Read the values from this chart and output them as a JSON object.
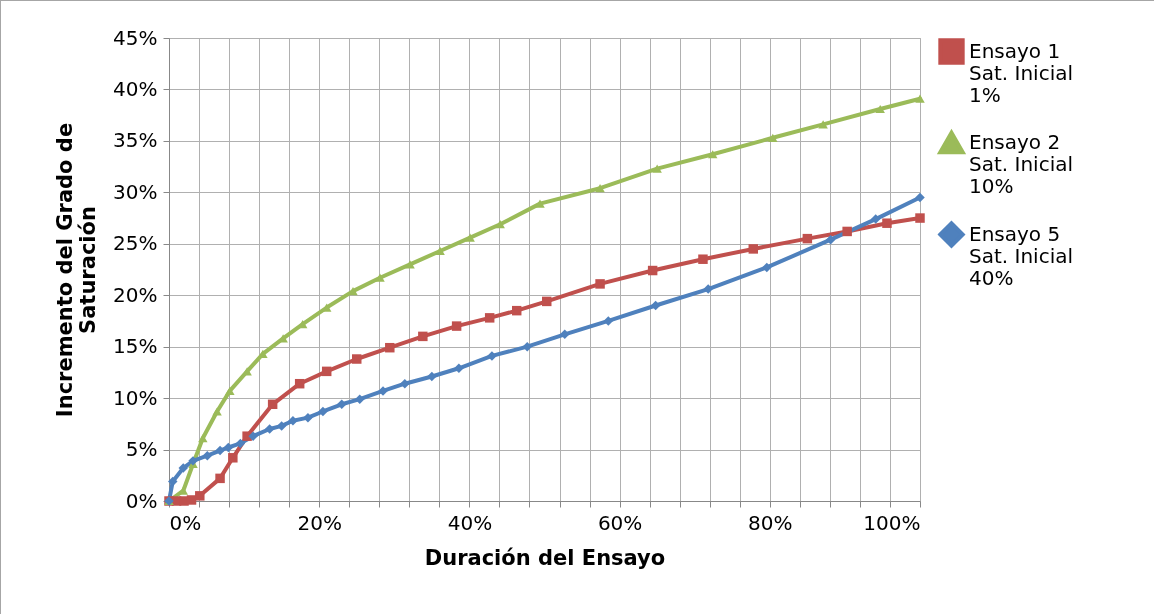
{
  "chart_data": {
    "type": "line",
    "xlabel": "Duración del Ensayo",
    "ylabel": "Incremento del Grado de Saturación",
    "legend": "right",
    "grid": true,
    "xlim": [
      0,
      100
    ],
    "xticks": [
      {
        "value": 0,
        "label": "0%"
      },
      {
        "value": 4,
        "label": null
      },
      {
        "value": 8,
        "label": null
      },
      {
        "value": 12,
        "label": null
      },
      {
        "value": 16,
        "label": null
      },
      {
        "value": 20,
        "label": "20%"
      },
      {
        "value": 24,
        "label": null
      },
      {
        "value": 28,
        "label": null
      },
      {
        "value": 32,
        "label": null
      },
      {
        "value": 36,
        "label": null
      },
      {
        "value": 40,
        "label": "40%"
      },
      {
        "value": 44,
        "label": null
      },
      {
        "value": 48,
        "label": null
      },
      {
        "value": 52,
        "label": null
      },
      {
        "value": 56,
        "label": null
      },
      {
        "value": 60,
        "label": "60%"
      },
      {
        "value": 64,
        "label": null
      },
      {
        "value": 68,
        "label": null
      },
      {
        "value": 72,
        "label": null
      },
      {
        "value": 76,
        "label": null
      },
      {
        "value": 80,
        "label": "80%"
      },
      {
        "value": 84,
        "label": null
      },
      {
        "value": 88,
        "label": null
      },
      {
        "value": 92,
        "label": null
      },
      {
        "value": 96,
        "label": null
      },
      {
        "value": 100,
        "label": "100%"
      }
    ],
    "ylim": [
      0,
      45
    ],
    "yticks": [
      {
        "value": 0,
        "label": "0%"
      },
      {
        "value": 5,
        "label": "5%"
      },
      {
        "value": 10,
        "label": "10%"
      },
      {
        "value": 15,
        "label": "15%"
      },
      {
        "value": 20,
        "label": "20%"
      },
      {
        "value": 25,
        "label": "25%"
      },
      {
        "value": 30,
        "label": "30%"
      },
      {
        "value": 35,
        "label": "35%"
      },
      {
        "value": 40,
        "label": "40%"
      },
      {
        "value": 45,
        "label": "45%"
      }
    ],
    "series": [
      {
        "name": "Ensayo 1 Sat. Inicial 1%",
        "color": "#c0504d",
        "marker": "square",
        "x": [
          0,
          1,
          2,
          3,
          4.1,
          6.8,
          8.5,
          10.4,
          13.8,
          17.4,
          21,
          25,
          29.4,
          33.8,
          38.3,
          42.7,
          46.3,
          50.3,
          57.4,
          64.4,
          71.1,
          77.8,
          85,
          90.3,
          95.6,
          100
        ],
        "values": [
          0,
          0,
          0,
          0.1,
          0.5,
          2.2,
          4.2,
          6.3,
          9.4,
          11.4,
          12.6,
          13.8,
          14.9,
          16,
          17,
          17.8,
          18.5,
          19.4,
          21.1,
          22.4,
          23.5,
          24.5,
          25.5,
          26.2,
          27,
          27.5
        ]
      },
      {
        "name": "Ensayo 2 Sat. Inicial 10%",
        "color": "#9bbb59",
        "marker": "triangle",
        "x": [
          0,
          1.9,
          3.2,
          4.5,
          6.4,
          8.1,
          10.4,
          12.5,
          15.2,
          17.8,
          21,
          24.5,
          28.1,
          32.1,
          36.1,
          40.1,
          44.1,
          49.4,
          57.4,
          65,
          72.4,
          80.4,
          87.1,
          94.7,
          100
        ],
        "values": [
          0,
          1,
          3.6,
          6.1,
          8.7,
          10.7,
          12.6,
          14.3,
          15.8,
          17.2,
          18.8,
          20.4,
          21.7,
          23,
          24.3,
          25.6,
          26.9,
          28.9,
          30.4,
          32.3,
          33.7,
          35.3,
          36.6,
          38.1,
          39.1
        ]
      },
      {
        "name": "Ensayo 5 Sat. Inicial 40%",
        "color": "#4f81bd",
        "marker": "diamond",
        "x": [
          0,
          0.5,
          1.9,
          3.2,
          5.1,
          6.8,
          7.9,
          9.5,
          11.2,
          13.4,
          15,
          16.5,
          18.5,
          20.5,
          23,
          25.4,
          28.5,
          31.4,
          35,
          38.6,
          43,
          47.7,
          52.7,
          58.5,
          64.8,
          71.8,
          79.6,
          88.1,
          94.1,
          100
        ],
        "values": [
          0,
          1.9,
          3.2,
          3.9,
          4.4,
          4.9,
          5.2,
          5.6,
          6.3,
          7,
          7.3,
          7.8,
          8.1,
          8.7,
          9.4,
          9.9,
          10.7,
          11.4,
          12.1,
          12.9,
          14.1,
          15,
          16.2,
          17.5,
          19,
          20.6,
          22.7,
          25.4,
          27.4,
          29.5
        ]
      }
    ]
  }
}
